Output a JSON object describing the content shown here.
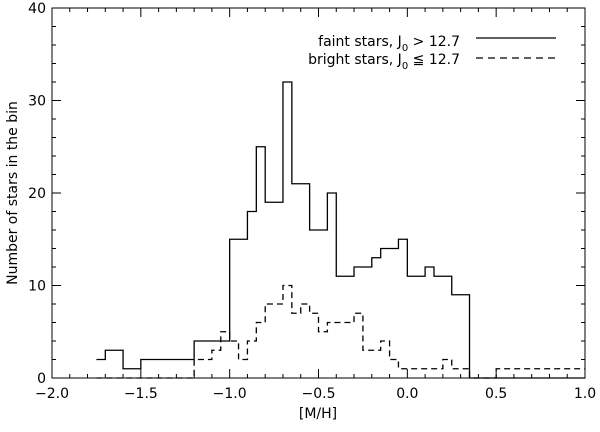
{
  "chart_data": {
    "type": "histogram",
    "xlabel": "[M/H]",
    "ylabel": "Number of stars in the bin",
    "xlim": [
      -2.0,
      1.0
    ],
    "ylim": [
      0,
      40
    ],
    "x_ticks": [
      -2.0,
      -1.5,
      -1.0,
      -0.5,
      0.0,
      0.5,
      1.0
    ],
    "x_tick_labels": [
      "−2.0",
      "−1.5",
      "−1.0",
      "−0.5",
      "0.0",
      "0.5",
      "1.0"
    ],
    "y_ticks": [
      0,
      10,
      20,
      30,
      40
    ],
    "y_tick_labels": [
      "0",
      "10",
      "20",
      "30",
      "40"
    ],
    "grid": false,
    "legend_position": "top-right",
    "bin_edges": [
      -1.75,
      -1.7,
      -1.65,
      -1.6,
      -1.55,
      -1.5,
      -1.45,
      -1.4,
      -1.35,
      -1.3,
      -1.25,
      -1.2,
      -1.15,
      -1.1,
      -1.05,
      -1.0,
      -0.95,
      -0.9,
      -0.85,
      -0.8,
      -0.75,
      -0.7,
      -0.65,
      -0.6,
      -0.55,
      -0.5,
      -0.45,
      -0.4,
      -0.35,
      -0.3,
      -0.25,
      -0.2,
      -0.15,
      -0.1,
      -0.05,
      0.0,
      0.05,
      0.1,
      0.15,
      0.2,
      0.25,
      0.3,
      0.35,
      0.4,
      0.45,
      0.5,
      0.55,
      0.6,
      0.65,
      0.7,
      0.75,
      0.8,
      0.85,
      0.9,
      0.95,
      1.0
    ],
    "series": [
      {
        "name_main": "faint stars, J",
        "name_sub": "0",
        "name_rest": " > 12.7",
        "line_style": "solid",
        "values": [
          2,
          3,
          3,
          1,
          1,
          2,
          2,
          2,
          2,
          2,
          2,
          4,
          4,
          4,
          4,
          15,
          15,
          18,
          25,
          19,
          19,
          32,
          21,
          21,
          16,
          16,
          20,
          11,
          11,
          12,
          12,
          13,
          14,
          14,
          15,
          11,
          11,
          12,
          11,
          11,
          9,
          9,
          0,
          0,
          0,
          0,
          0,
          0,
          0,
          0,
          0,
          0,
          0,
          0,
          0
        ]
      },
      {
        "name_main": "bright stars, J",
        "name_sub": "0",
        "name_rest": " ≦ 12.7",
        "line_style": "dashed",
        "values": [
          0,
          0,
          0,
          0,
          0,
          0,
          0,
          0,
          0,
          0,
          0,
          2,
          2,
          3,
          5,
          4,
          2,
          4,
          6,
          8,
          8,
          10,
          7,
          8,
          7,
          5,
          6,
          6,
          6,
          7,
          3,
          3,
          4,
          2,
          1,
          1,
          1,
          1,
          1,
          2,
          1,
          1,
          0,
          0,
          0,
          1,
          1,
          1,
          1,
          1,
          1,
          1,
          1,
          1,
          1
        ]
      }
    ]
  }
}
